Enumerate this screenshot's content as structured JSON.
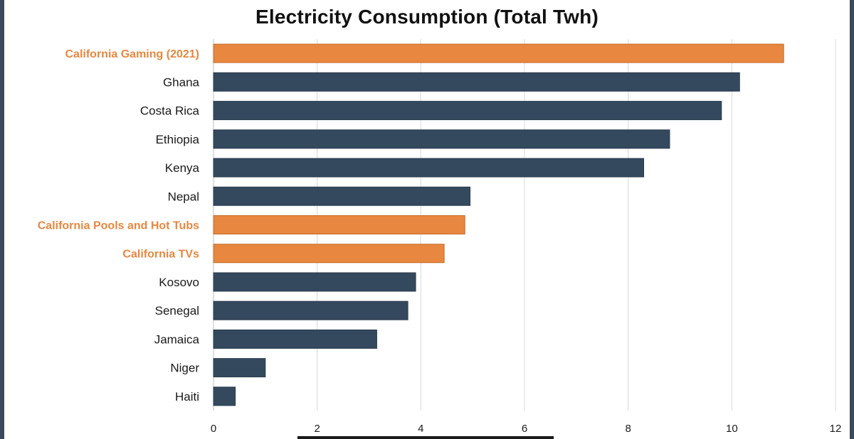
{
  "chart_data": {
    "type": "bar",
    "orientation": "horizontal",
    "title": "Electricity Consumption (Total Twh)",
    "xlabel": "",
    "ylabel": "",
    "xlim": [
      0,
      12
    ],
    "xticks": [
      0,
      2,
      4,
      6,
      8,
      10,
      12
    ],
    "grid": true,
    "categories": [
      "California Gaming (2021)",
      "Ghana",
      "Costa Rica",
      "Ethiopia",
      "Kenya",
      "Nepal",
      "California Pools and Hot Tubs",
      "California TVs",
      "Kosovo",
      "Senegal",
      "Jamaica",
      "Niger",
      "Haiti"
    ],
    "values": [
      11.0,
      10.15,
      9.8,
      8.8,
      8.3,
      4.95,
      4.85,
      4.45,
      3.9,
      3.75,
      3.15,
      1.0,
      0.42
    ],
    "highlight": [
      true,
      false,
      false,
      false,
      false,
      false,
      true,
      true,
      false,
      false,
      false,
      false,
      false
    ],
    "colors": {
      "default": "#34495e",
      "highlight": "#e8873f",
      "highlight_label": "#e8873f",
      "label": "#1a1a1a",
      "grid": "#d9d9d9"
    }
  }
}
